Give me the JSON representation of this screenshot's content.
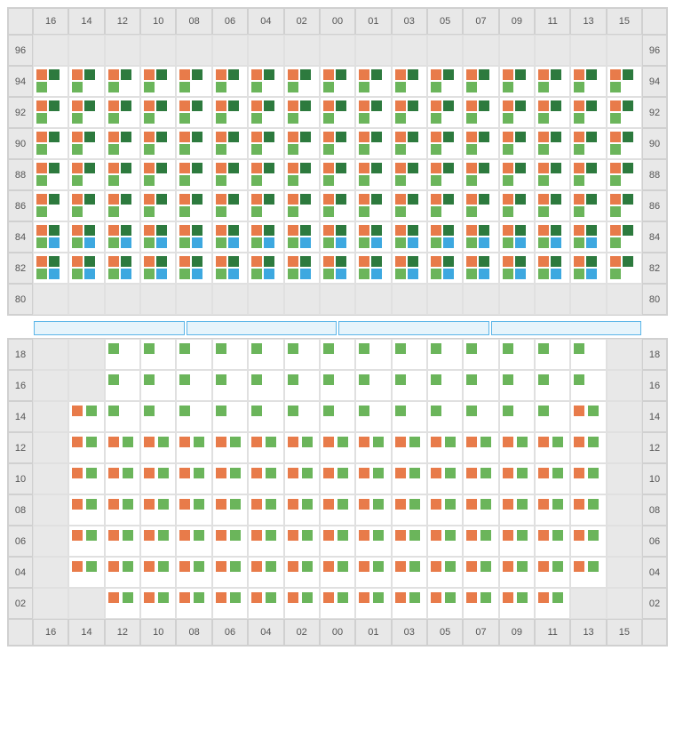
{
  "colors": {
    "orange": "#e87b4a",
    "lightGreen": "#6bb55b",
    "darkGreen": "#2d7a3e",
    "blue": "#3da8e0",
    "empty": "#e8e8e8",
    "cellBg": "#ffffff",
    "border": "#d0d0d0",
    "labelText": "#555555",
    "sepBg": "#e6f4fb",
    "sepBorder": "#5bb5e8"
  },
  "columns": [
    "16",
    "14",
    "12",
    "10",
    "08",
    "06",
    "04",
    "02",
    "00",
    "01",
    "03",
    "05",
    "07",
    "09",
    "11",
    "13",
    "15"
  ],
  "block1": {
    "rows": [
      "96",
      "94",
      "92",
      "90",
      "88",
      "86",
      "84",
      "82",
      "80"
    ],
    "patterns": {
      "96": {
        "type": "emptyAll"
      },
      "94": {
        "type": "A"
      },
      "92": {
        "type": "A"
      },
      "90": {
        "type": "A"
      },
      "88": {
        "type": "A"
      },
      "86": {
        "type": "A"
      },
      "84": {
        "type": "B"
      },
      "82": {
        "type": "B"
      },
      "80": {
        "type": "emptyAll"
      }
    },
    "patternDefs": {
      "A": {
        "firstCol": [
          "orange",
          "darkGreen",
          "lightGreen"
        ],
        "midCols": [
          "orange",
          "darkGreen",
          "lightGreen"
        ],
        "lastCol": [
          "orange",
          "darkGreen",
          "lightGreen"
        ]
      },
      "B": {
        "firstCol": [
          "orange",
          "darkGreen",
          "lightGreen",
          "blue"
        ],
        "midCols": [
          "orange",
          "darkGreen",
          "lightGreen",
          "blue"
        ],
        "lastCol": [
          "orange",
          "darkGreen",
          "lightGreen"
        ]
      }
    }
  },
  "separator": {
    "segments": 4
  },
  "block2": {
    "rows": [
      "18",
      "16",
      "14",
      "12",
      "10",
      "08",
      "06",
      "04",
      "02"
    ],
    "emptyCols": {
      "18": [
        "16",
        "14",
        "15"
      ],
      "16": [
        "16",
        "14",
        "15"
      ],
      "14": [
        "16",
        "15"
      ],
      "12": [
        "16",
        "15"
      ],
      "10": [
        "16",
        "15"
      ],
      "08": [
        "16",
        "15"
      ],
      "06": [
        "16",
        "15"
      ],
      "04": [
        "16",
        "15"
      ],
      "02": [
        "16",
        "14",
        "13",
        "15"
      ]
    },
    "cellContents": {
      "18": {
        "default": [
          "lightGreen"
        ]
      },
      "16": {
        "default": [
          "lightGreen"
        ]
      },
      "14": {
        "default": [
          "lightGreen"
        ],
        "overrides": {
          "14": [
            "orange",
            "lightGreen"
          ],
          "13": [
            "orange",
            "lightGreen"
          ]
        }
      },
      "12": {
        "default": [
          "orange",
          "lightGreen"
        ]
      },
      "10": {
        "default": [
          "orange",
          "lightGreen"
        ]
      },
      "08": {
        "default": [
          "orange",
          "lightGreen"
        ]
      },
      "06": {
        "default": [
          "orange",
          "lightGreen"
        ]
      },
      "04": {
        "default": [
          "orange",
          "lightGreen"
        ]
      },
      "02": {
        "default": [
          "orange",
          "lightGreen"
        ]
      }
    }
  }
}
